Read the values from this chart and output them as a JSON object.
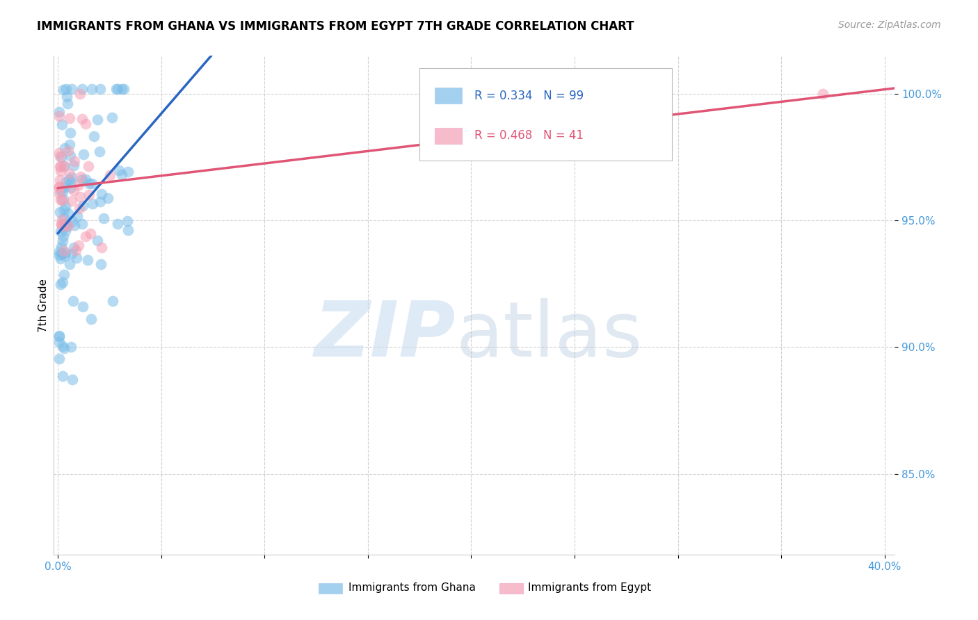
{
  "title": "IMMIGRANTS FROM GHANA VS IMMIGRANTS FROM EGYPT 7TH GRADE CORRELATION CHART",
  "source": "Source: ZipAtlas.com",
  "ylabel": "7th Grade",
  "ytick_labels": [
    "85.0%",
    "90.0%",
    "95.0%",
    "100.0%"
  ],
  "ytick_values": [
    0.85,
    0.9,
    0.95,
    1.0
  ],
  "xlim": [
    -0.002,
    0.405
  ],
  "ylim": [
    0.818,
    1.015
  ],
  "ghana_color": "#7BBDE8",
  "egypt_color": "#F5A0B5",
  "ghana_line_color": "#2B66C2",
  "egypt_line_color": "#E05575",
  "ghana_R": 0.334,
  "ghana_N": 99,
  "egypt_R": 0.468,
  "egypt_N": 41,
  "legend_label_ghana": "Immigrants from Ghana",
  "legend_label_egypt": "Immigrants from Egypt",
  "grid_color": "#CCCCCC",
  "title_fontsize": 12,
  "source_fontsize": 10,
  "tick_fontsize": 11,
  "legend_fontsize": 12,
  "ytick_color": "#4499DD",
  "xtick_color": "#4499DD"
}
